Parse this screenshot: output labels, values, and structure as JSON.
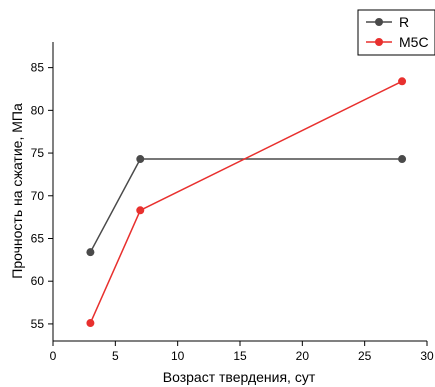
{
  "chart_data": {
    "type": "line",
    "xlabel": "Возраст твердения, сут",
    "ylabel": "Прочность на сжатие, МПа",
    "xlim": [
      0,
      30
    ],
    "ylim": [
      53,
      88
    ],
    "xticks": [
      0,
      5,
      10,
      15,
      20,
      25,
      30
    ],
    "yticks": [
      55,
      60,
      65,
      70,
      75,
      80,
      85
    ],
    "grid": false,
    "legend_position": "top-right",
    "series": [
      {
        "name": "R",
        "color": "#4a4a4a",
        "x": [
          3,
          7,
          28
        ],
        "y": [
          63.4,
          74.3,
          74.3
        ]
      },
      {
        "name": "M5C",
        "color": "#e8302e",
        "x": [
          3,
          7,
          28
        ],
        "y": [
          55.1,
          68.3,
          83.4
        ]
      }
    ]
  }
}
